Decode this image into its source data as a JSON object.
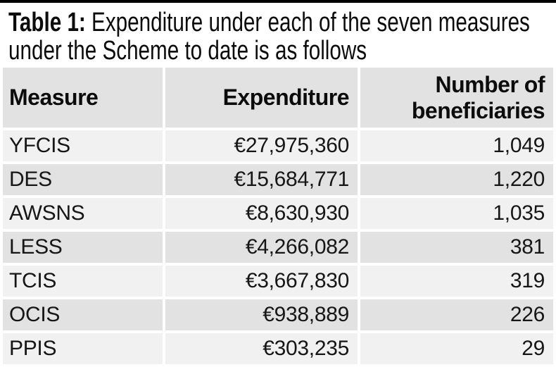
{
  "page": {
    "top_bar_color": "#000000",
    "background": "#ffffff"
  },
  "title": {
    "prefix": "Table 1:",
    "text": "Expenditure under each of the seven measures under the Scheme to date is as follows"
  },
  "table": {
    "columns": [
      {
        "label": "Measure",
        "align": "left"
      },
      {
        "label": "Expenditure",
        "align": "right"
      },
      {
        "label": "Number of beneficiaries",
        "align": "right"
      }
    ],
    "rows": [
      {
        "measure": "YFCIS",
        "expenditure": "€27,975,360",
        "beneficiaries": "1,049"
      },
      {
        "measure": "DES",
        "expenditure": "€15,684,771",
        "beneficiaries": "1,220"
      },
      {
        "measure": "AWSNS",
        "expenditure": "€8,630,930",
        "beneficiaries": "1,035"
      },
      {
        "measure": "LESS",
        "expenditure": "€4,266,082",
        "beneficiaries": "381"
      },
      {
        "measure": "TCIS",
        "expenditure": "€3,667,830",
        "beneficiaries": "319"
      },
      {
        "measure": "OCIS",
        "expenditure": "€938,889",
        "beneficiaries": "226"
      },
      {
        "measure": "PPIS",
        "expenditure": "€303,235",
        "beneficiaries": "29"
      }
    ],
    "colors": {
      "header_bg": "#e2e2e2",
      "row_light": "#f1f1f1",
      "row_dark": "#e2e2e2",
      "gutter": "#ffffff",
      "text": "#121212"
    }
  }
}
